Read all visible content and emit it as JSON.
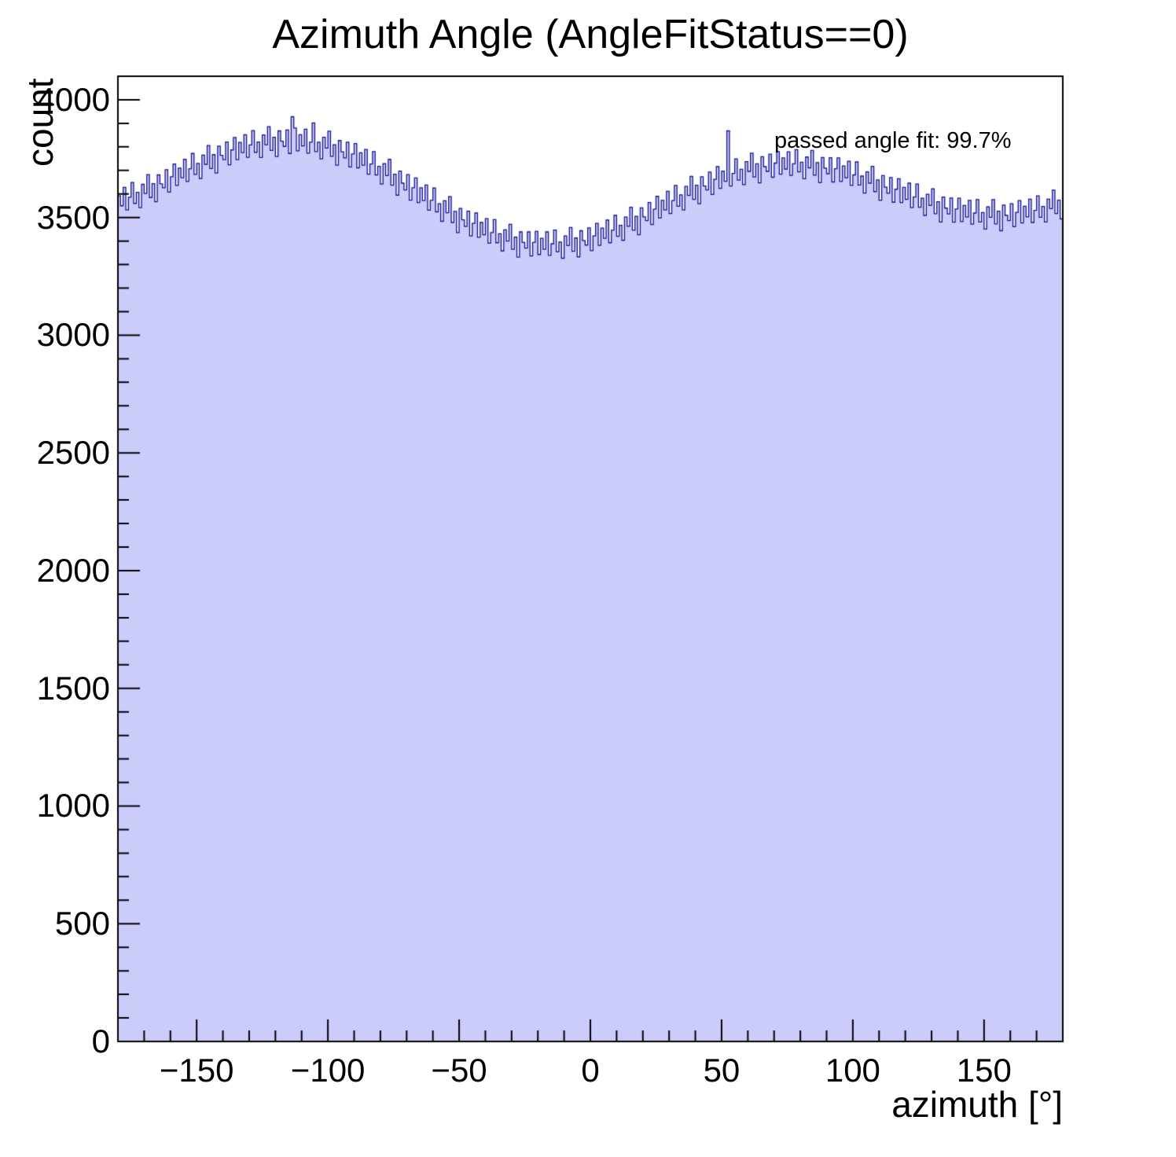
{
  "chart_data": {
    "type": "bar",
    "title": "Azimuth Angle (AngleFitStatus==0)",
    "xlabel": "azimuth [°]",
    "ylabel": "count",
    "annotation": "passed angle fit: 99.7%",
    "xlim": [
      -180,
      180
    ],
    "ylim": [
      0,
      4100
    ],
    "x_start": -180,
    "bin_width": 1,
    "grid": false,
    "legend_position": "none",
    "colors": {
      "fill": "#ccccfb",
      "line": "#10108d",
      "axis": "#000000"
    },
    "x_ticks": {
      "major_step": 50,
      "minor_step": 10,
      "labels": [
        {
          "value": -150,
          "label": "−150"
        },
        {
          "value": -100,
          "label": "−100"
        },
        {
          "value": -50,
          "label": "−50"
        },
        {
          "value": 0,
          "label": "0"
        },
        {
          "value": 50,
          "label": "50"
        },
        {
          "value": 100,
          "label": "100"
        },
        {
          "value": 150,
          "label": "150"
        }
      ]
    },
    "y_ticks": {
      "major_step": 500,
      "minor_step": 100,
      "labels": [
        {
          "value": 0,
          "label": "0"
        },
        {
          "value": 500,
          "label": "500"
        },
        {
          "value": 1000,
          "label": "1000"
        },
        {
          "value": 1500,
          "label": "1500"
        },
        {
          "value": 2000,
          "label": "2000"
        },
        {
          "value": 2500,
          "label": "2500"
        },
        {
          "value": 3000,
          "label": "3000"
        },
        {
          "value": 3500,
          "label": "3500"
        },
        {
          "value": 4000,
          "label": "4000"
        }
      ]
    },
    "values": [
      3592,
      3550,
      3628,
      3532,
      3586,
      3649,
      3560,
      3607,
      3542,
      3641,
      3602,
      3682,
      3585,
      3644,
      3567,
      3681,
      3643,
      3626,
      3703,
      3608,
      3673,
      3727,
      3636,
      3710,
      3669,
      3747,
      3653,
      3707,
      3772,
      3683,
      3730,
      3666,
      3765,
      3726,
      3806,
      3708,
      3767,
      3689,
      3803,
      3764,
      3746,
      3821,
      3724,
      3787,
      3840,
      3746,
      3819,
      3776,
      3852,
      3756,
      3808,
      3869,
      3777,
      3821,
      3755,
      3851,
      3809,
      3886,
      3785,
      3841,
      3759,
      3868,
      3824,
      3802,
      3872,
      3772,
      3928,
      3880,
      3783,
      3852,
      3804,
      3875,
      3773,
      3820,
      3902,
      3780,
      3820,
      3749,
      3841,
      3795,
      3867,
      3760,
      3809,
      3722,
      3827,
      3779,
      3753,
      3820,
      3715,
      3770,
      3814,
      3711,
      3775,
      3722,
      3789,
      3684,
      3727,
      3780,
      3681,
      3717,
      3642,
      3729,
      3678,
      3747,
      3637,
      3684,
      3595,
      3697,
      3646,
      3617,
      3682,
      3574,
      3626,
      3668,
      3564,
      3626,
      3572,
      3638,
      3531,
      3573,
      3625,
      3524,
      3559,
      3484,
      3571,
      3520,
      3589,
      3479,
      3526,
      3436,
      3539,
      3490,
      3462,
      3527,
      3422,
      3475,
      3519,
      3416,
      3479,
      3427,
      3495,
      3391,
      3436,
      3491,
      3393,
      3431,
      3358,
      3448,
      3400,
      3471,
      3365,
      3417,
      3332,
      3439,
      3394,
      3370,
      3439,
      3337,
      3394,
      3441,
      3343,
      3412,
      3365,
      3439,
      3339,
      3388,
      3447,
      3354,
      3396,
      3327,
      3422,
      3381,
      3458,
      3357,
      3413,
      3333,
      3444,
      3402,
      3383,
      3456,
      3359,
      3422,
      3475,
      3382,
      3455,
      3412,
      3489,
      3393,
      3446,
      3509,
      3420,
      3467,
      3403,
      3502,
      3463,
      3544,
      3446,
      3505,
      3427,
      3541,
      3503,
      3487,
      3564,
      3470,
      3535,
      3590,
      3498,
      3573,
      3532,
      3611,
      3517,
      3572,
      3636,
      3548,
      3596,
      3532,
      3632,
      3594,
      3675,
      3577,
      3637,
      3559,
      3673,
      3634,
      3617,
      3693,
      3598,
      3662,
      3716,
      3624,
      3697,
      3654,
      3868,
      3634,
      3687,
      3749,
      3659,
      3705,
      3640,
      3737,
      3696,
      3773,
      3672,
      3728,
      3647,
      3758,
      3716,
      3696,
      3769,
      3671,
      3731,
      3780,
      3684,
      3753,
      3706,
      3779,
      3679,
      3728,
      3788,
      3694,
      3735,
      3665,
      3757,
      3711,
      3785,
      3680,
      3733,
      3648,
      3755,
      3710,
      3686,
      3754,
      3651,
      3707,
      3753,
      3653,
      3719,
      3669,
      3739,
      3636,
      3681,
      3736,
      3638,
      3676,
      3604,
      3694,
      3646,
      3717,
      3610,
      3660,
      3573,
      3678,
      3629,
      3603,
      3670,
      3565,
      3620,
      3665,
      3564,
      3628,
      3577,
      3646,
      3542,
      3587,
      3642,
      3544,
      3582,
      3509,
      3599,
      3551,
      3622,
      3516,
      3567,
      3481,
      3587,
      3540,
      3515,
      3583,
      3480,
      3536,
      3582,
      3483,
      3551,
      3502,
      3573,
      3472,
      3519,
      3576,
      3481,
      3521,
      3451,
      3545,
      3501,
      3576,
      3473,
      3527,
      3444,
      3553,
      3509,
      3487,
      3559,
      3461,
      3522,
      3572,
      3477,
      3548,
      3503,
      3578,
      3479,
      3530,
      3592,
      3501,
      3547,
      3481,
      3578,
      3538,
      3616,
      3517,
      3574,
      3494
    ]
  }
}
